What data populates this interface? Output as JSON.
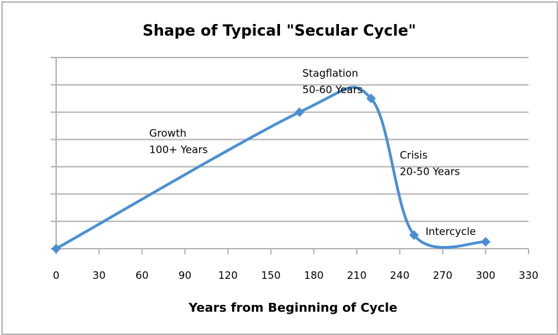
{
  "chart_data": {
    "type": "line",
    "title": "Shape of Typical \"Secular Cycle\"",
    "xlabel": "Years from Beginning of Cycle",
    "ylabel": "",
    "xlim": [
      0,
      330
    ],
    "ylim": [
      0,
      70
    ],
    "x_ticks": [
      0,
      30,
      60,
      90,
      120,
      150,
      180,
      210,
      240,
      270,
      300,
      330
    ],
    "y_gridlines": [
      10,
      20,
      30,
      40,
      50,
      60,
      70
    ],
    "y_tick_labels_shown": false,
    "grid": true,
    "legend": "none",
    "smoothed": true,
    "series": [
      {
        "name": "Secular Cycle",
        "color": "#4a8fd3",
        "marker": "diamond",
        "points": [
          {
            "x": 0,
            "y": 0
          },
          {
            "x": 170,
            "y": 50
          },
          {
            "x": 220,
            "y": 55
          },
          {
            "x": 250,
            "y": 5
          },
          {
            "x": 300,
            "y": 2.5
          }
        ]
      }
    ],
    "annotations": [
      {
        "lines": [
          "Growth",
          "100+ Years"
        ],
        "x": 65,
        "y": 41
      },
      {
        "lines": [
          "Stagflation",
          "50-60 Years"
        ],
        "x": 172,
        "y": 63
      },
      {
        "lines": [
          "Crisis",
          "20-50 Years"
        ],
        "x": 240,
        "y": 33
      },
      {
        "lines": [
          "Intercycle"
        ],
        "x": 258,
        "y": 5
      }
    ]
  }
}
